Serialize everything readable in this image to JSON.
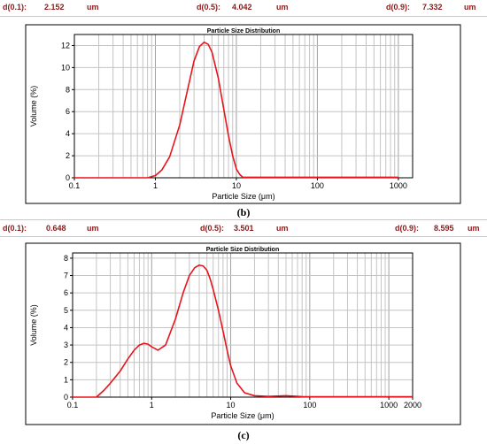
{
  "stats_b": {
    "d01_label": "d(0.1):",
    "d01_value": "2.152",
    "d01_unit": "um",
    "d05_label": "d(0.5):",
    "d05_value": "4.042",
    "d05_unit": "um",
    "d09_label": "d(0.9):",
    "d09_value": "7.332",
    "d09_unit": "um"
  },
  "stats_c": {
    "d01_label": "d(0.1):",
    "d01_value": "0.648",
    "d01_unit": "um",
    "d05_label": "d(0.5):",
    "d05_value": "3.501",
    "d05_unit": "um",
    "d09_label": "d(0.9):",
    "d09_value": "8.595",
    "d09_unit": "um"
  },
  "captions": {
    "b": "(b)",
    "c": "(c)"
  },
  "colors": {
    "curve": "#e8141c",
    "stat_text": "#8b1a1a"
  },
  "chart_data": [
    {
      "type": "line",
      "title": "Particle Size Distribution",
      "xlabel": "Particle Size (μm)",
      "ylabel": "Volume (%)",
      "x_scale": "log",
      "xlim": [
        0.1,
        1500
      ],
      "ylim": [
        0,
        13
      ],
      "x_ticks": [
        0.1,
        1,
        10,
        100,
        1000
      ],
      "x_tick_labels": [
        "0.1",
        "1",
        "10",
        "100",
        "1000"
      ],
      "y_ticks": [
        0,
        2,
        4,
        6,
        8,
        10,
        12
      ],
      "grid": true,
      "series": [
        {
          "x": [
            0.1,
            0.8,
            1.0,
            1.2,
            1.5,
            2.0,
            2.5,
            3.0,
            3.5,
            4.0,
            4.5,
            5.0,
            6.0,
            7.0,
            8.0,
            9.0,
            10.0,
            11.0,
            12.0,
            50.0,
            100.0,
            1000.0
          ],
          "y": [
            0.0,
            0.0,
            0.2,
            0.7,
            1.9,
            4.8,
            8.0,
            10.6,
            11.9,
            12.3,
            12.1,
            11.4,
            9.0,
            6.2,
            3.8,
            2.0,
            0.8,
            0.3,
            0.05,
            0.05,
            0.05,
            0.05
          ]
        }
      ]
    },
    {
      "type": "line",
      "title": "Particle Size Distribution",
      "xlabel": "Particle Size (μm)",
      "ylabel": "Volume (%)",
      "x_scale": "log",
      "xlim": [
        0.1,
        2000
      ],
      "ylim": [
        0,
        8.3
      ],
      "x_ticks": [
        0.1,
        1,
        10,
        100,
        1000,
        2000
      ],
      "x_tick_labels": [
        "0.1",
        "1",
        "10",
        "100",
        "1000",
        "2000"
      ],
      "y_ticks": [
        0,
        1,
        2,
        3,
        4,
        5,
        6,
        7,
        8
      ],
      "grid": true,
      "series": [
        {
          "x": [
            0.1,
            0.2,
            0.25,
            0.3,
            0.4,
            0.5,
            0.6,
            0.7,
            0.8,
            0.9,
            1.0,
            1.2,
            1.5,
            2.0,
            2.5,
            3.0,
            3.5,
            4.0,
            4.5,
            5.0,
            5.5,
            6.0,
            7.0,
            8.0,
            9.0,
            10.0,
            12.0,
            15.0,
            20.0,
            30.0,
            50.0,
            80.0,
            100.0,
            1000.0,
            2000.0
          ],
          "y": [
            0.0,
            0.0,
            0.4,
            0.8,
            1.5,
            2.2,
            2.7,
            3.0,
            3.1,
            3.05,
            2.9,
            2.7,
            3.0,
            4.5,
            6.0,
            7.0,
            7.45,
            7.6,
            7.55,
            7.3,
            6.8,
            6.2,
            5.0,
            3.8,
            2.7,
            1.8,
            0.8,
            0.25,
            0.08,
            0.04,
            0.08,
            0.03,
            0.02,
            0.02,
            0.02
          ]
        }
      ]
    }
  ]
}
